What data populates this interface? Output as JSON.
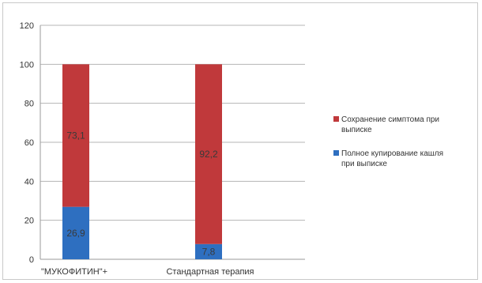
{
  "chart_data": {
    "type": "bar",
    "stacked": true,
    "categories": [
      "\"МУКОФИТИН\"+",
      "Стандартная терапия"
    ],
    "ylim": [
      0,
      120
    ],
    "yticks": [
      0,
      20,
      40,
      60,
      80,
      100,
      120
    ],
    "grid": true,
    "legend_position": "right",
    "series": [
      {
        "name": "Полное купирование кашля при выписке",
        "values": [
          26.9,
          7.8
        ],
        "labels": [
          "26,9",
          "7,8"
        ],
        "color": "#2e6fc0"
      },
      {
        "name": "Сохранение симптома при выписке",
        "values": [
          73.1,
          92.2
        ],
        "labels": [
          "73,1",
          "92,2"
        ],
        "color": "#c0393b"
      }
    ],
    "legend": [
      {
        "lines": [
          "Сохранение симптома при",
          "выписке"
        ],
        "color": "#c0393b"
      },
      {
        "lines": [
          "Полное купирование кашля",
          "при выписке"
        ],
        "color": "#2e6fc0"
      }
    ]
  }
}
